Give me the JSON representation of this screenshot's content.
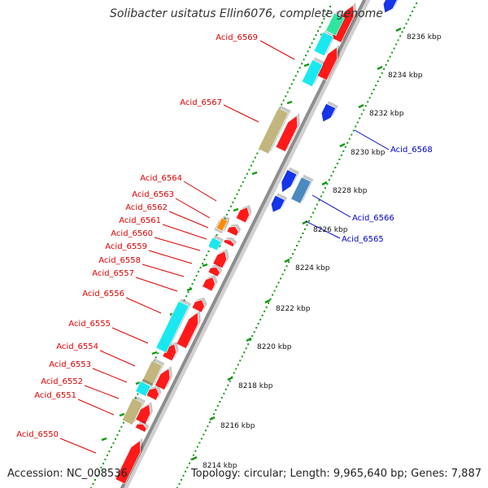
{
  "title": "Solibacter usitatus Ellin6076, complete genome",
  "footer": {
    "accession": "Accession: NC_008536",
    "summary": "Topology: circular; Length: 9,965,640 bp; Genes: 7,887"
  },
  "colors": {
    "forward_gene_label": "#dd0000",
    "reverse_gene_label": "#0000cc",
    "cds_forward": "#ff2222",
    "cds_reverse": "#1030e0",
    "tick": "#119911",
    "backbone": "#999999"
  },
  "scale_labels": [
    "8236 kbp",
    "8234 kbp",
    "8232 kbp",
    "8230 kbp",
    "8228 kbp",
    "8226 kbp",
    "8224 kbp",
    "8222 kbp",
    "8220 kbp",
    "8218 kbp",
    "8216 kbp",
    "8214 kbp"
  ],
  "forward_labels": [
    "Acid_6569",
    "Acid_6567",
    "Acid_6564",
    "Acid_6563",
    "Acid_6562",
    "Acid_6561",
    "Acid_6560",
    "Acid_6559",
    "Acid_6558",
    "Acid_6557",
    "Acid_6556",
    "Acid_6555",
    "Acid_6554",
    "Acid_6553",
    "Acid_6552",
    "Acid_6551",
    "Acid_6550"
  ],
  "reverse_labels": [
    "Acid_6568",
    "Acid_6566",
    "Acid_6565"
  ]
}
